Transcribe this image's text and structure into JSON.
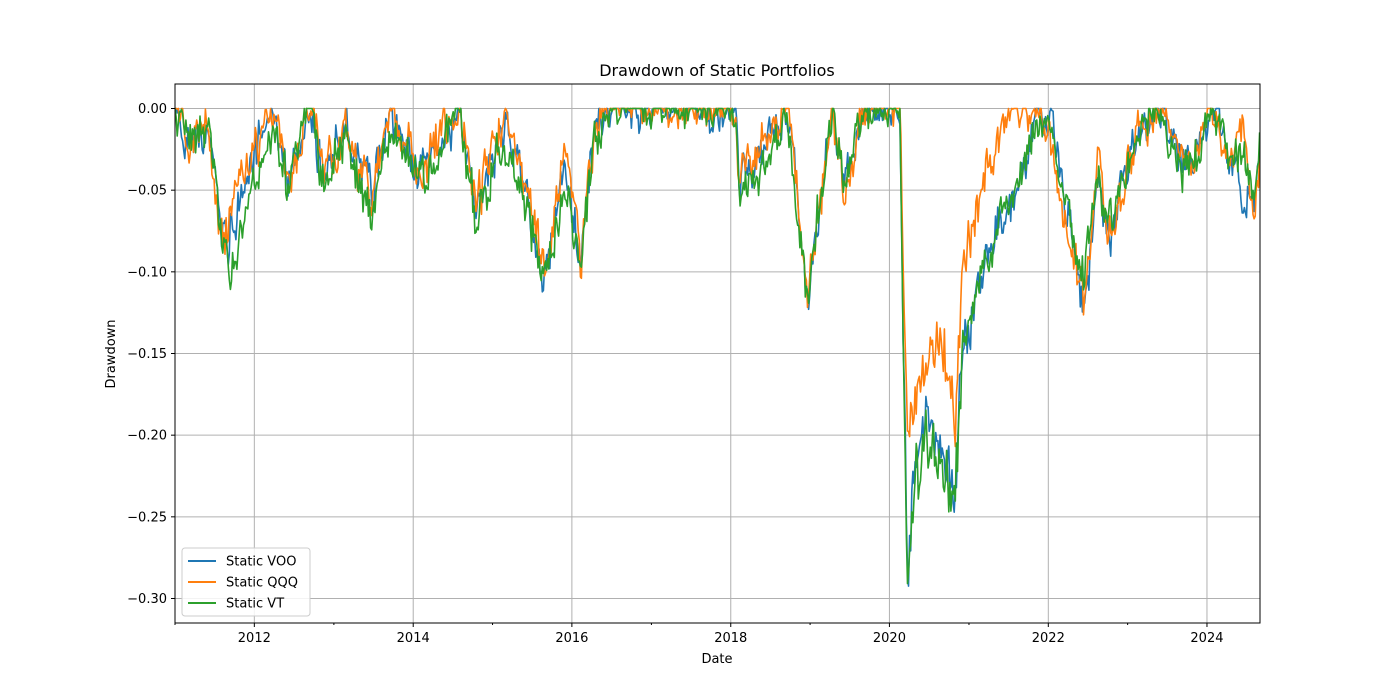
{
  "chart_data": {
    "type": "line",
    "title": "Drawdown of Static Portfolios",
    "xlabel": "Date",
    "ylabel": "Drawdown",
    "x_range": [
      "2011-01-01",
      "2024-09-01"
    ],
    "ylim": [
      -0.315,
      0.015
    ],
    "grid": true,
    "legend_position": "lower-left",
    "x_ticks": [
      "2012",
      "2014",
      "2016",
      "2018",
      "2020",
      "2022",
      "2024"
    ],
    "y_ticks": [
      "0.00",
      "−0.05",
      "−0.10",
      "−0.15",
      "−0.20",
      "−0.25",
      "−0.30"
    ],
    "series": [
      {
        "name": "Static VOO",
        "color": "#1f77b4",
        "points": [
          [
            "2011-01-01",
            0.0
          ],
          [
            "2011-03-15",
            -0.02
          ],
          [
            "2011-06-01",
            -0.01
          ],
          [
            "2011-08-10",
            -0.085
          ],
          [
            "2011-10-01",
            -0.07
          ],
          [
            "2011-12-01",
            -0.04
          ],
          [
            "2012-04-01",
            0.0
          ],
          [
            "2012-06-01",
            -0.05
          ],
          [
            "2012-09-15",
            0.0
          ],
          [
            "2012-11-15",
            -0.045
          ],
          [
            "2013-03-01",
            -0.01
          ],
          [
            "2013-06-20",
            -0.055
          ],
          [
            "2013-09-15",
            0.0
          ],
          [
            "2014-02-01",
            -0.04
          ],
          [
            "2014-08-01",
            0.0
          ],
          [
            "2014-10-15",
            -0.065
          ],
          [
            "2015-03-01",
            -0.01
          ],
          [
            "2015-08-25",
            -0.1
          ],
          [
            "2015-12-01",
            -0.04
          ],
          [
            "2016-02-10",
            -0.095
          ],
          [
            "2016-04-15",
            -0.01
          ],
          [
            "2016-07-15",
            0.0
          ],
          [
            "2017-06-01",
            0.0
          ],
          [
            "2018-01-25",
            0.0
          ],
          [
            "2018-02-10",
            -0.05
          ],
          [
            "2018-04-01",
            -0.04
          ],
          [
            "2018-09-20",
            0.0
          ],
          [
            "2018-12-24",
            -0.11
          ],
          [
            "2019-04-15",
            0.0
          ],
          [
            "2019-06-01",
            -0.05
          ],
          [
            "2019-09-01",
            0.0
          ],
          [
            "2020-02-19",
            0.0
          ],
          [
            "2020-03-23",
            -0.29
          ],
          [
            "2020-05-01",
            -0.21
          ],
          [
            "2020-07-01",
            -0.19
          ],
          [
            "2020-09-01",
            -0.21
          ],
          [
            "2020-10-30",
            -0.23
          ],
          [
            "2020-12-01",
            -0.15
          ],
          [
            "2021-03-01",
            -0.1
          ],
          [
            "2021-06-01",
            -0.07
          ],
          [
            "2021-09-01",
            -0.045
          ],
          [
            "2021-11-15",
            0.0
          ],
          [
            "2022-01-15",
            -0.01
          ],
          [
            "2022-03-10",
            -0.05
          ],
          [
            "2022-06-15",
            -0.12
          ],
          [
            "2022-08-15",
            -0.04
          ],
          [
            "2022-10-15",
            -0.08
          ],
          [
            "2023-02-01",
            -0.02
          ],
          [
            "2023-05-15",
            0.0
          ],
          [
            "2023-10-25",
            -0.04
          ],
          [
            "2024-02-01",
            0.0
          ],
          [
            "2024-04-19",
            -0.03
          ],
          [
            "2024-06-15",
            -0.05
          ],
          [
            "2024-08-05",
            -0.06
          ],
          [
            "2024-09-01",
            -0.03
          ]
        ]
      },
      {
        "name": "Static QQQ",
        "color": "#ff7f0e",
        "points": [
          [
            "2011-01-01",
            0.0
          ],
          [
            "2011-03-15",
            -0.02
          ],
          [
            "2011-06-01",
            -0.01
          ],
          [
            "2011-08-10",
            -0.09
          ],
          [
            "2011-10-01",
            -0.05
          ],
          [
            "2011-12-01",
            -0.035
          ],
          [
            "2012-04-01",
            0.0
          ],
          [
            "2012-06-01",
            -0.045
          ],
          [
            "2012-09-15",
            0.0
          ],
          [
            "2012-11-15",
            -0.04
          ],
          [
            "2013-03-01",
            -0.015
          ],
          [
            "2013-06-20",
            -0.055
          ],
          [
            "2013-09-15",
            0.0
          ],
          [
            "2014-02-01",
            -0.04
          ],
          [
            "2014-08-01",
            0.0
          ],
          [
            "2014-10-15",
            -0.06
          ],
          [
            "2015-03-01",
            0.0
          ],
          [
            "2015-08-25",
            -0.1
          ],
          [
            "2015-12-01",
            -0.02
          ],
          [
            "2016-02-10",
            -0.095
          ],
          [
            "2016-04-15",
            -0.01
          ],
          [
            "2016-07-15",
            0.0
          ],
          [
            "2017-06-01",
            0.0
          ],
          [
            "2018-01-25",
            0.0
          ],
          [
            "2018-02-10",
            -0.05
          ],
          [
            "2018-04-01",
            -0.03
          ],
          [
            "2018-09-20",
            0.0
          ],
          [
            "2018-12-24",
            -0.115
          ],
          [
            "2019-04-15",
            0.0
          ],
          [
            "2019-06-01",
            -0.055
          ],
          [
            "2019-09-01",
            0.0
          ],
          [
            "2020-02-19",
            0.0
          ],
          [
            "2020-03-23",
            -0.2
          ],
          [
            "2020-05-01",
            -0.17
          ],
          [
            "2020-07-01",
            -0.15
          ],
          [
            "2020-09-01",
            -0.14
          ],
          [
            "2020-10-30",
            -0.19
          ],
          [
            "2020-12-01",
            -0.1
          ],
          [
            "2021-03-01",
            -0.05
          ],
          [
            "2021-06-01",
            -0.01
          ],
          [
            "2021-09-01",
            0.0
          ],
          [
            "2021-11-15",
            -0.01
          ],
          [
            "2022-01-15",
            -0.02
          ],
          [
            "2022-03-10",
            -0.06
          ],
          [
            "2022-06-15",
            -0.125
          ],
          [
            "2022-08-15",
            -0.03
          ],
          [
            "2022-10-15",
            -0.085
          ],
          [
            "2023-02-01",
            -0.02
          ],
          [
            "2023-05-15",
            0.0
          ],
          [
            "2023-10-25",
            -0.04
          ],
          [
            "2024-02-01",
            0.0
          ],
          [
            "2024-04-19",
            -0.03
          ],
          [
            "2024-06-15",
            -0.01
          ],
          [
            "2024-08-05",
            -0.065
          ],
          [
            "2024-09-01",
            -0.03
          ]
        ]
      },
      {
        "name": "Static VT",
        "color": "#2ca02c",
        "points": [
          [
            "2011-01-01",
            0.0
          ],
          [
            "2011-03-15",
            -0.025
          ],
          [
            "2011-06-01",
            -0.01
          ],
          [
            "2011-08-10",
            -0.09
          ],
          [
            "2011-10-01",
            -0.1
          ],
          [
            "2011-12-01",
            -0.06
          ],
          [
            "2012-04-01",
            -0.01
          ],
          [
            "2012-06-01",
            -0.05
          ],
          [
            "2012-09-15",
            0.0
          ],
          [
            "2012-11-15",
            -0.045
          ],
          [
            "2013-03-01",
            -0.02
          ],
          [
            "2013-06-20",
            -0.065
          ],
          [
            "2013-09-15",
            -0.01
          ],
          [
            "2014-02-01",
            -0.045
          ],
          [
            "2014-08-01",
            0.0
          ],
          [
            "2014-10-15",
            -0.065
          ],
          [
            "2015-03-01",
            -0.02
          ],
          [
            "2015-08-25",
            -0.103
          ],
          [
            "2015-12-01",
            -0.05
          ],
          [
            "2016-02-10",
            -0.102
          ],
          [
            "2016-04-15",
            -0.02
          ],
          [
            "2016-07-15",
            0.0
          ],
          [
            "2017-06-01",
            0.0
          ],
          [
            "2018-01-25",
            0.0
          ],
          [
            "2018-02-10",
            -0.055
          ],
          [
            "2018-04-01",
            -0.045
          ],
          [
            "2018-09-20",
            -0.01
          ],
          [
            "2018-12-24",
            -0.11
          ],
          [
            "2019-04-15",
            0.0
          ],
          [
            "2019-06-01",
            -0.05
          ],
          [
            "2019-09-01",
            0.0
          ],
          [
            "2020-02-19",
            0.0
          ],
          [
            "2020-03-23",
            -0.3
          ],
          [
            "2020-05-01",
            -0.22
          ],
          [
            "2020-07-01",
            -0.2
          ],
          [
            "2020-09-01",
            -0.22
          ],
          [
            "2020-10-30",
            -0.24
          ],
          [
            "2020-12-01",
            -0.15
          ],
          [
            "2021-03-01",
            -0.1
          ],
          [
            "2021-06-01",
            -0.065
          ],
          [
            "2021-09-01",
            -0.04
          ],
          [
            "2021-11-15",
            -0.01
          ],
          [
            "2022-01-15",
            -0.01
          ],
          [
            "2022-03-10",
            -0.05
          ],
          [
            "2022-06-15",
            -0.1
          ],
          [
            "2022-08-15",
            -0.04
          ],
          [
            "2022-10-15",
            -0.07
          ],
          [
            "2023-02-01",
            -0.02
          ],
          [
            "2023-05-15",
            0.0
          ],
          [
            "2023-10-25",
            -0.045
          ],
          [
            "2024-02-01",
            0.0
          ],
          [
            "2024-04-19",
            -0.03
          ],
          [
            "2024-06-15",
            -0.03
          ],
          [
            "2024-08-05",
            -0.06
          ],
          [
            "2024-09-01",
            -0.02
          ]
        ]
      }
    ]
  }
}
